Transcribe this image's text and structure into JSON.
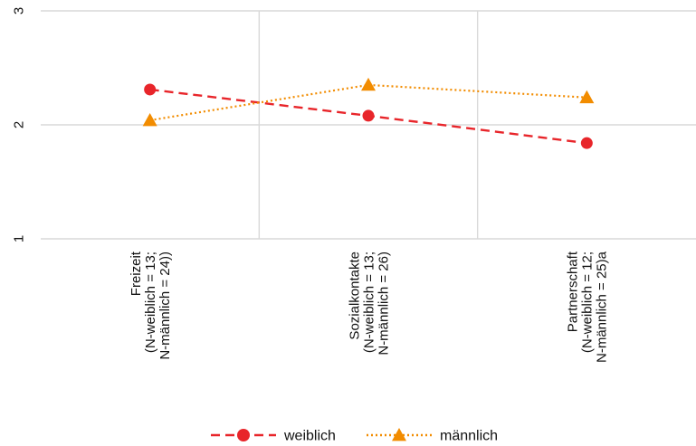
{
  "chart_data": {
    "type": "line",
    "title": "",
    "xlabel": "",
    "ylabel": "",
    "ylim": [
      1,
      3
    ],
    "yticks": [
      "1",
      "2",
      "3"
    ],
    "grid": true,
    "legend_position": "bottom-center",
    "categories": [
      [
        "Freizeit",
        "(N-weiblich = 13;",
        "N-männlich = 24))"
      ],
      [
        "Sozialkontakte",
        "(N-weiblich = 13;",
        "N-männlich = 26)"
      ],
      [
        "Partnerschaft",
        "(N-weiblich = 12;",
        "N-männlich = 25)a"
      ]
    ],
    "series": [
      {
        "name": "weiblich",
        "values": [
          2.31,
          2.08,
          1.84
        ],
        "color": "#e8252a",
        "marker": "circle",
        "line_style": "dashed"
      },
      {
        "name": "männlich",
        "values": [
          2.04,
          2.35,
          2.24
        ],
        "color": "#f28c00",
        "marker": "triangle",
        "line_style": "dotted"
      }
    ]
  }
}
